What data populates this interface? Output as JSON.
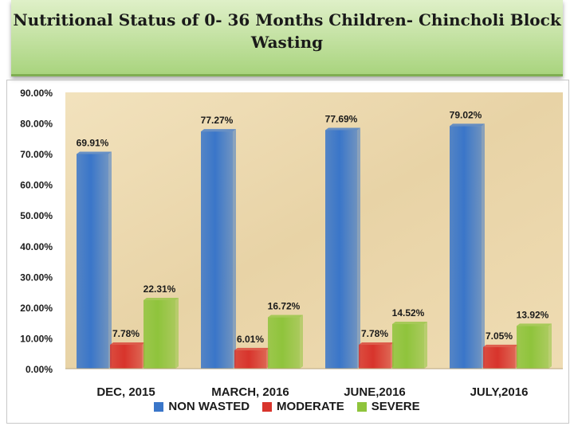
{
  "header": {
    "title_line1": "Nutritional Status of  0- 36 Months Children- Chincholi Block",
    "title_line2": "Wasting"
  },
  "chart_data": {
    "type": "bar",
    "title": "Nutritional Status of  0- 36 Months Children- Chincholi Block Wasting",
    "categories": [
      "DEC, 2015",
      "MARCH, 2016",
      "JUNE,2016",
      "JULY,2016"
    ],
    "series": [
      {
        "name": "NON WASTED",
        "color": "#3a76c9",
        "values": [
          69.91,
          77.27,
          77.69,
          79.02
        ],
        "labels": [
          "69.91%",
          "77.27%",
          "77.69%",
          "79.02%"
        ]
      },
      {
        "name": "MODERATE",
        "color": "#d8342c",
        "values": [
          7.78,
          6.01,
          7.78,
          7.05
        ],
        "labels": [
          "7.78%",
          "6.01%",
          "7.78%",
          "7.05%"
        ]
      },
      {
        "name": "SEVERE",
        "color": "#8fc43c",
        "values": [
          22.31,
          16.72,
          14.52,
          13.92
        ],
        "labels": [
          "22.31%",
          "16.72%",
          "14.52%",
          "13.92%"
        ]
      }
    ],
    "y_ticks": [
      "0.00%",
      "10.00%",
      "20.00%",
      "30.00%",
      "40.00%",
      "50.00%",
      "60.00%",
      "70.00%",
      "80.00%",
      "90.00%"
    ],
    "ylim": [
      0,
      90
    ],
    "xlabel": "",
    "ylabel": "",
    "grid": false,
    "legend_position": "bottom"
  }
}
